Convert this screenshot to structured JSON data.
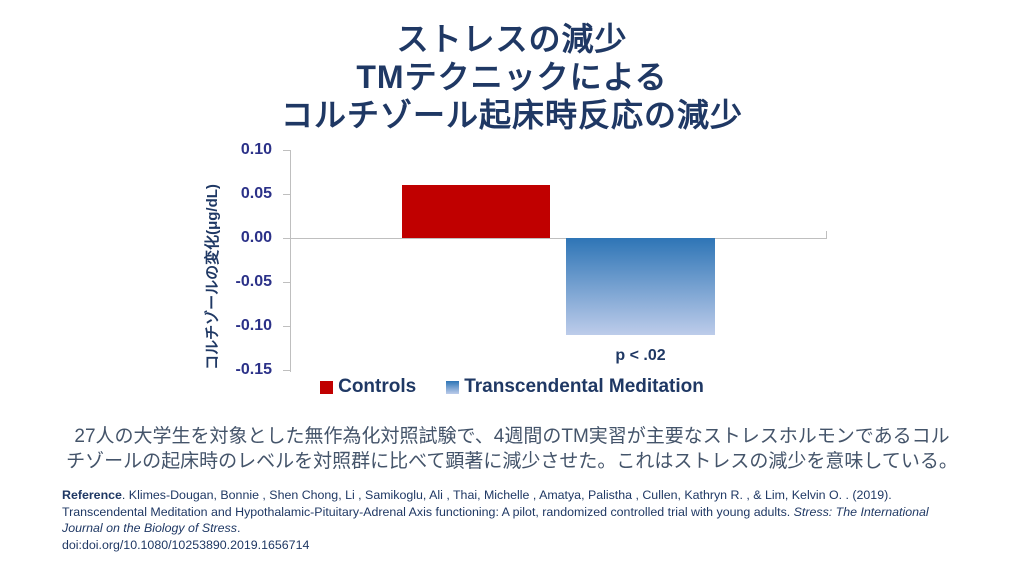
{
  "slide": {
    "title_lines": [
      "ストレスの減少",
      "TMテクニックによる",
      "コルチゾール起床時反応の減少"
    ]
  },
  "chart_data": {
    "type": "bar",
    "title": "ストレスの減少 TMテクニックによる コルチゾール起床時反応の減少",
    "xlabel": "",
    "ylabel": "コルチゾールの変化(μg/dL)",
    "categories": [
      "Controls",
      "Transcendental Meditation"
    ],
    "values": [
      0.06,
      -0.11
    ],
    "ylim": [
      -0.15,
      0.1
    ],
    "ytick_labels": [
      "0.10",
      "0.05",
      "0.00",
      "-0.05",
      "-0.10",
      "-0.15"
    ],
    "grid": false,
    "legend_position": "bottom",
    "annotation": "p < .02",
    "bars": [
      {
        "label": "Controls",
        "color_top": "#C00000",
        "color_bottom": "#C00000"
      },
      {
        "label": "Transcendental Meditation",
        "color_top": "#2E75B6",
        "color_bottom": "#BDCCEA"
      }
    ],
    "axis_color": "#BFBFBF"
  },
  "summary": {
    "line1": "27人の大学生を対象とした無作為化対照試験で、4週間のTM実習が主要なストレスホルモンであるコル",
    "line2": "チゾールの起床時のレベルを対照群に比べて顕著に減少させた。これはストレスの減少を意味している。"
  },
  "reference": {
    "label": "Reference",
    "authors_text": ". Klimes-Dougan, Bonnie , Shen Chong, Li , Samikoglu, Ali , Thai, Michelle , Amatya, Palistha , Cullen, Kathryn R. , & Lim, Kelvin O. . (2019). Transcendental Meditation and Hypothalamic-Pituitary-Adrenal Axis functioning: A pilot, randomized controlled trial with young adults. ",
    "journal": "Stress: The International Journal on the Biology of Stress",
    "period": ".",
    "doi": "doi:doi.org/10.1080/10253890.2019.1656714"
  },
  "colors": {
    "title_navy": "#1F3864",
    "tick_indigo": "#2B3188",
    "body_slate": "#44546A",
    "controls_red": "#C00000",
    "tm_blue_top": "#2E75B6",
    "tm_blue_bottom": "#BDCCEA",
    "axis_gray": "#BFBFBF"
  }
}
